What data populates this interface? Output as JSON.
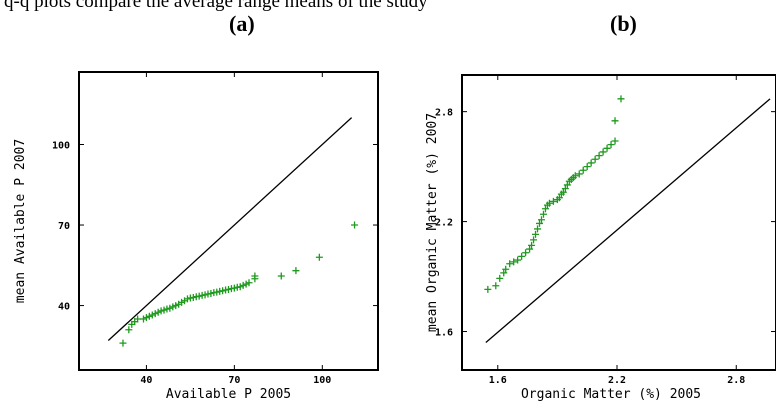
{
  "caption_fragment": "q-q plots compare the average range means of the study",
  "panels": [
    "(a)",
    "(b)"
  ],
  "chart_data": [
    {
      "type": "scatter",
      "label": "(a)",
      "xlabel": "Available P 2005",
      "ylabel": "mean Available P 2007",
      "xlim": [
        17,
        119
      ],
      "ylim": [
        16,
        127
      ],
      "xticks": [
        40,
        70,
        100
      ],
      "yticks": [
        40,
        70,
        100
      ],
      "reference_line": [
        [
          27,
          27
        ],
        [
          110,
          110
        ]
      ],
      "marker": "+",
      "color": "#1e9a1e",
      "line_color": "#000000",
      "points": [
        [
          32,
          26
        ],
        [
          34,
          31
        ],
        [
          35,
          33
        ],
        [
          36,
          34
        ],
        [
          37,
          35
        ],
        [
          39,
          35
        ],
        [
          40,
          35.5
        ],
        [
          41,
          36
        ],
        [
          42,
          36.5
        ],
        [
          43,
          37
        ],
        [
          44,
          37.5
        ],
        [
          45,
          38
        ],
        [
          46,
          38.3
        ],
        [
          47,
          38.7
        ],
        [
          48,
          39
        ],
        [
          49,
          39.5
        ],
        [
          50,
          40
        ],
        [
          51,
          40.5
        ],
        [
          52,
          41.2
        ],
        [
          53,
          41.8
        ],
        [
          54,
          42.5
        ],
        [
          55,
          42.8
        ],
        [
          56,
          43
        ],
        [
          57,
          43.3
        ],
        [
          58,
          43.5
        ],
        [
          59,
          43.8
        ],
        [
          60,
          44
        ],
        [
          61,
          44.3
        ],
        [
          62,
          44.5
        ],
        [
          63,
          44.8
        ],
        [
          64,
          45
        ],
        [
          65,
          45.3
        ],
        [
          66,
          45.5
        ],
        [
          67,
          45.8
        ],
        [
          68,
          46
        ],
        [
          69,
          46.3
        ],
        [
          70,
          46.5
        ],
        [
          71,
          46.8
        ],
        [
          72,
          47
        ],
        [
          73,
          47.5
        ],
        [
          74,
          48
        ],
        [
          75,
          48.5
        ],
        [
          77,
          50
        ],
        [
          77,
          51
        ],
        [
          86,
          51
        ],
        [
          91,
          53
        ],
        [
          99,
          58
        ],
        [
          111,
          70
        ]
      ]
    },
    {
      "type": "scatter",
      "label": "(b)",
      "xlabel": "Organic Matter (%) 2005",
      "ylabel": "mean Organic Matter (%) 2007",
      "xlim": [
        1.42,
        3.0
      ],
      "ylim": [
        1.39,
        3.0
      ],
      "xticks": [
        1.6,
        2.2,
        2.8
      ],
      "yticks": [
        1.6,
        2.2,
        2.8
      ],
      "reference_line": [
        [
          1.54,
          1.54
        ],
        [
          2.97,
          2.87
        ]
      ],
      "marker": "+",
      "color": "#1e9a1e",
      "line_color": "#000000",
      "points": [
        [
          1.55,
          1.83
        ],
        [
          1.59,
          1.85
        ],
        [
          1.61,
          1.89
        ],
        [
          1.63,
          1.92
        ],
        [
          1.64,
          1.94
        ],
        [
          1.66,
          1.97
        ],
        [
          1.68,
          1.98
        ],
        [
          1.7,
          1.99
        ],
        [
          1.72,
          2.01
        ],
        [
          1.74,
          2.03
        ],
        [
          1.76,
          2.05
        ],
        [
          1.77,
          2.07
        ],
        [
          1.78,
          2.1
        ],
        [
          1.79,
          2.13
        ],
        [
          1.8,
          2.16
        ],
        [
          1.81,
          2.19
        ],
        [
          1.82,
          2.21
        ],
        [
          1.83,
          2.24
        ],
        [
          1.84,
          2.27
        ],
        [
          1.85,
          2.29
        ],
        [
          1.86,
          2.3
        ],
        [
          1.88,
          2.31
        ],
        [
          1.9,
          2.32
        ],
        [
          1.91,
          2.33
        ],
        [
          1.92,
          2.35
        ],
        [
          1.93,
          2.36
        ],
        [
          1.94,
          2.38
        ],
        [
          1.95,
          2.4
        ],
        [
          1.96,
          2.42
        ],
        [
          1.97,
          2.43
        ],
        [
          1.98,
          2.44
        ],
        [
          1.99,
          2.45
        ],
        [
          2.01,
          2.46
        ],
        [
          2.03,
          2.48
        ],
        [
          2.05,
          2.5
        ],
        [
          2.07,
          2.52
        ],
        [
          2.09,
          2.54
        ],
        [
          2.11,
          2.56
        ],
        [
          2.13,
          2.58
        ],
        [
          2.15,
          2.6
        ],
        [
          2.17,
          2.62
        ],
        [
          2.19,
          2.64
        ],
        [
          2.19,
          2.75
        ],
        [
          2.22,
          2.87
        ]
      ]
    }
  ]
}
